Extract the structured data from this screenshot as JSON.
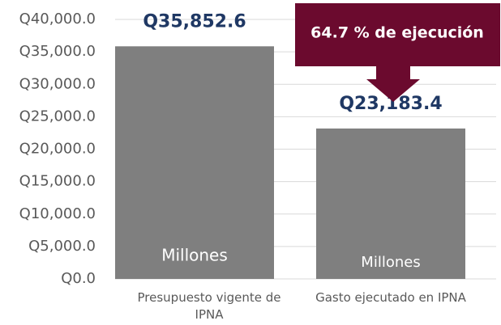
{
  "chart_data": {
    "type": "bar",
    "categories": [
      "Presupuesto vigente de IPNA",
      "Gasto ejecutado en IPNA"
    ],
    "values": [
      35852.6,
      23183.4
    ],
    "value_labels": [
      "Q35,852.6",
      "Q23,183.4"
    ],
    "bar_labels": [
      "Millones",
      "Millones"
    ],
    "annotation": "64.7 % de ejecución",
    "color": "#7f7f7f",
    "ylim": [
      0,
      40000
    ],
    "yticks": [
      {
        "value": 0,
        "label": "Q0.0"
      },
      {
        "value": 5000,
        "label": "Q5,000.0"
      },
      {
        "value": 10000,
        "label": "Q10,000.0"
      },
      {
        "value": 15000,
        "label": "Q15,000.0"
      },
      {
        "value": 20000,
        "label": "Q20,000.0"
      },
      {
        "value": 25000,
        "label": "Q25,000.0"
      },
      {
        "value": 30000,
        "label": "Q30,000.0"
      },
      {
        "value": 35000,
        "label": "Q35,000.0"
      },
      {
        "value": 40000,
        "label": "Q40,000.0"
      }
    ],
    "grid": true
  }
}
